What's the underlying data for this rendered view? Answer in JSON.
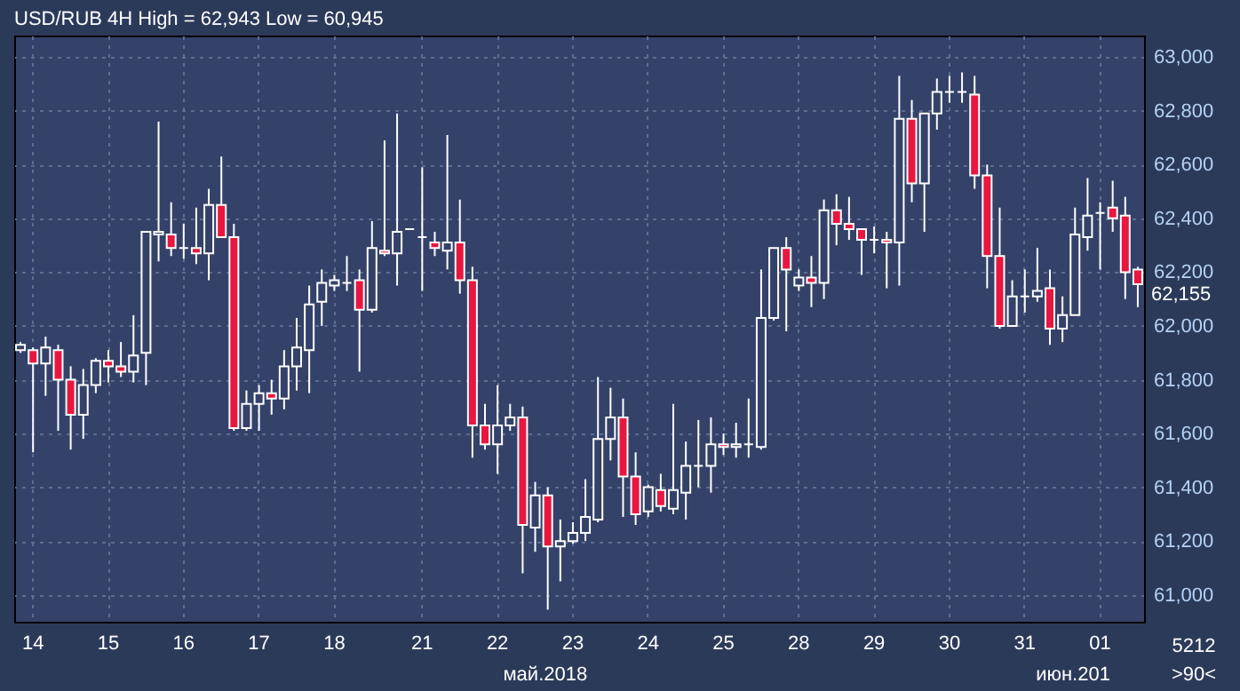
{
  "chart_data": {
    "type": "candlestick",
    "title": "USD/RUB 4H High = 62,943 Low = 60,945",
    "categories": [
      null,
      "14",
      null,
      null,
      null,
      null,
      null,
      "15",
      null,
      null,
      null,
      null,
      null,
      "16",
      null,
      null,
      null,
      null,
      null,
      "17",
      null,
      null,
      null,
      null,
      null,
      "18",
      null,
      null,
      null,
      null,
      null,
      null,
      "21",
      null,
      null,
      null,
      null,
      null,
      "22",
      null,
      null,
      null,
      null,
      null,
      "23",
      null,
      null,
      null,
      null,
      null,
      "24",
      null,
      null,
      null,
      null,
      null,
      "25",
      null,
      null,
      null,
      null,
      null,
      "28",
      null,
      null,
      null,
      null,
      null,
      "29",
      null,
      null,
      null,
      null,
      null,
      "30",
      null,
      null,
      null,
      null,
      null,
      "31",
      null,
      null,
      null,
      null,
      null,
      "01",
      null,
      null,
      null
    ],
    "ohlc": [
      [
        61910,
        61940,
        61900,
        61930
      ],
      [
        61910,
        61920,
        61530,
        61860
      ],
      [
        61860,
        61960,
        61740,
        61920
      ],
      [
        61910,
        61930,
        61610,
        61800
      ],
      [
        61800,
        61850,
        61540,
        61670
      ],
      [
        61670,
        61840,
        61580,
        61780
      ],
      [
        61780,
        61880,
        61750,
        61870
      ],
      [
        61870,
        61910,
        61790,
        61850
      ],
      [
        61850,
        61940,
        61810,
        61830
      ],
      [
        61830,
        62040,
        61790,
        61890
      ],
      [
        61900,
        62350,
        61780,
        62350
      ],
      [
        62340,
        62760,
        62240,
        62350
      ],
      [
        62340,
        62460,
        62260,
        62290
      ],
      [
        62290,
        62380,
        62250,
        62290
      ],
      [
        62290,
        62440,
        62230,
        62270
      ],
      [
        62270,
        62510,
        62170,
        62450
      ],
      [
        62450,
        62630,
        62330,
        62330
      ],
      [
        62330,
        62380,
        61610,
        61620
      ],
      [
        61620,
        61760,
        61610,
        61710
      ],
      [
        61710,
        61780,
        61610,
        61750
      ],
      [
        61750,
        61800,
        61670,
        61730
      ],
      [
        61730,
        61910,
        61690,
        61850
      ],
      [
        61850,
        62030,
        61760,
        61920
      ],
      [
        61910,
        62150,
        61750,
        62080
      ],
      [
        62090,
        62210,
        62000,
        62160
      ],
      [
        62150,
        62190,
        62130,
        62170
      ],
      [
        62160,
        62260,
        62130,
        62160
      ],
      [
        62170,
        62210,
        61830,
        62060
      ],
      [
        62060,
        62390,
        62050,
        62290
      ],
      [
        62280,
        62690,
        62260,
        62270
      ],
      [
        62270,
        62790,
        62150,
        62350
      ],
      [
        62360,
        62360,
        62360,
        62360
      ],
      [
        62330,
        62590,
        62130,
        62330
      ],
      [
        62310,
        62350,
        62260,
        62290
      ],
      [
        62280,
        62710,
        62210,
        62310
      ],
      [
        62310,
        62470,
        62120,
        62170
      ],
      [
        62170,
        62220,
        61510,
        61630
      ],
      [
        61630,
        61710,
        61540,
        61560
      ],
      [
        61560,
        61780,
        61450,
        61630
      ],
      [
        61630,
        61710,
        61610,
        61660
      ],
      [
        61660,
        61700,
        61080,
        61260
      ],
      [
        61250,
        61420,
        61160,
        61370
      ],
      [
        61370,
        61400,
        60945,
        61180
      ],
      [
        61180,
        61280,
        61050,
        61200
      ],
      [
        61200,
        61270,
        61190,
        61230
      ],
      [
        61230,
        61430,
        61200,
        61290
      ],
      [
        61280,
        61810,
        61270,
        61580
      ],
      [
        61580,
        61770,
        61500,
        61660
      ],
      [
        61660,
        61730,
        61290,
        61440
      ],
      [
        61440,
        61530,
        61260,
        61300
      ],
      [
        61310,
        61410,
        61290,
        61400
      ],
      [
        61390,
        61450,
        61310,
        61330
      ],
      [
        61320,
        61710,
        61300,
        61390
      ],
      [
        61380,
        61570,
        61280,
        61480
      ],
      [
        61480,
        61650,
        61400,
        61480
      ],
      [
        61480,
        61660,
        61380,
        61560
      ],
      [
        61560,
        61600,
        61520,
        61550
      ],
      [
        61550,
        61640,
        61510,
        61560
      ],
      [
        61560,
        61730,
        61510,
        61560
      ],
      [
        61550,
        62210,
        61540,
        62030
      ],
      [
        62030,
        62290,
        62020,
        62290
      ],
      [
        62290,
        62330,
        61980,
        62210
      ],
      [
        62150,
        62210,
        62130,
        62180
      ],
      [
        62180,
        62260,
        62070,
        62160
      ],
      [
        62160,
        62470,
        62100,
        62430
      ],
      [
        62430,
        62490,
        62300,
        62380
      ],
      [
        62380,
        62480,
        62320,
        62360
      ],
      [
        62360,
        62360,
        62190,
        62320
      ],
      [
        62320,
        62370,
        62270,
        62320
      ],
      [
        62320,
        62350,
        62140,
        62310
      ],
      [
        62310,
        62930,
        62150,
        62770
      ],
      [
        62770,
        62840,
        62460,
        62530
      ],
      [
        62530,
        62790,
        62350,
        62790
      ],
      [
        62790,
        62920,
        62730,
        62870
      ],
      [
        62870,
        62930,
        62830,
        62870
      ],
      [
        62870,
        62943,
        62830,
        62870
      ],
      [
        62860,
        62930,
        62510,
        62560
      ],
      [
        62560,
        62600,
        62140,
        62260
      ],
      [
        62260,
        62440,
        61990,
        62000
      ],
      [
        62000,
        62170,
        62000,
        62110
      ],
      [
        62110,
        62210,
        62050,
        62110
      ],
      [
        62110,
        62290,
        62090,
        62130
      ],
      [
        62140,
        62210,
        61930,
        61990
      ],
      [
        61990,
        62110,
        61940,
        62040
      ],
      [
        62040,
        62440,
        62040,
        62340
      ],
      [
        62330,
        62550,
        62280,
        62410
      ],
      [
        62420,
        62460,
        62210,
        62420
      ],
      [
        62440,
        62540,
        62350,
        62400
      ],
      [
        62410,
        62480,
        62100,
        62200
      ],
      [
        62210,
        62220,
        62070,
        62155
      ]
    ],
    "ylim": [
      60900,
      63080
    ],
    "yticks": [
      {
        "value": 61000,
        "label": "61,000"
      },
      {
        "value": 61200,
        "label": "61,200"
      },
      {
        "value": 61400,
        "label": "61,400"
      },
      {
        "value": 61600,
        "label": "61,600"
      },
      {
        "value": 61800,
        "label": "61,800"
      },
      {
        "value": 62000,
        "label": "62,000"
      },
      {
        "value": 62200,
        "label": "62,200"
      },
      {
        "value": 62400,
        "label": "62,400"
      },
      {
        "value": 62600,
        "label": "62,600"
      },
      {
        "value": 62800,
        "label": "62,800"
      },
      {
        "value": 63000,
        "label": "63,000"
      }
    ],
    "grid": true,
    "annotations": [
      "май.2018",
      "июн.201",
      "5212",
      ">90<",
      "62,155"
    ]
  }
}
